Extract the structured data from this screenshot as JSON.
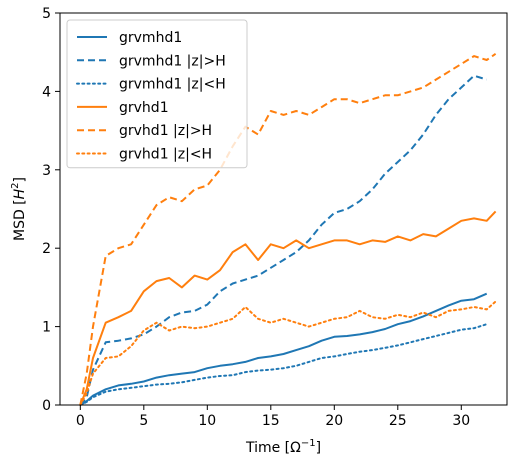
{
  "chart_data": {
    "type": "line",
    "title": "",
    "xlabel": "Time [Ω",
    "xlabel_sup": "−1",
    "xlabel_end": "]",
    "ylabel": "MSD [",
    "ylabel_italic": "H",
    "ylabel_sup": "2",
    "ylabel_end": "]",
    "xlim": [
      -1.6,
      33.6
    ],
    "ylim": [
      0,
      5
    ],
    "xticks": [
      0,
      5,
      10,
      15,
      20,
      25,
      30
    ],
    "xtick_labels": [
      "0",
      "5",
      "10",
      "15",
      "20",
      "25",
      "30"
    ],
    "yticks": [
      0,
      1,
      2,
      3,
      4,
      5
    ],
    "ytick_labels": [
      "0",
      "1",
      "2",
      "3",
      "4",
      "5"
    ],
    "grid": false,
    "legend_position": "top-left",
    "colors": {
      "blue": "#1f77b4",
      "orange": "#ff7f0e"
    },
    "series": [
      {
        "name": "grvmhd1",
        "color": "#1f77b4",
        "dash": "solid",
        "points": [
          [
            0,
            0
          ],
          [
            0.5,
            0.05
          ],
          [
            1,
            0.12
          ],
          [
            2,
            0.2
          ],
          [
            3,
            0.25
          ],
          [
            4,
            0.27
          ],
          [
            5,
            0.3
          ],
          [
            6,
            0.35
          ],
          [
            7,
            0.38
          ],
          [
            8,
            0.4
          ],
          [
            9,
            0.42
          ],
          [
            10,
            0.47
          ],
          [
            11,
            0.5
          ],
          [
            12,
            0.52
          ],
          [
            13,
            0.55
          ],
          [
            14,
            0.6
          ],
          [
            15,
            0.62
          ],
          [
            16,
            0.65
          ],
          [
            17,
            0.7
          ],
          [
            18,
            0.75
          ],
          [
            19,
            0.82
          ],
          [
            20,
            0.87
          ],
          [
            21,
            0.88
          ],
          [
            22,
            0.9
          ],
          [
            23,
            0.93
          ],
          [
            24,
            0.97
          ],
          [
            25,
            1.03
          ],
          [
            26,
            1.07
          ],
          [
            27,
            1.13
          ],
          [
            28,
            1.2
          ],
          [
            29,
            1.27
          ],
          [
            30,
            1.33
          ],
          [
            31,
            1.35
          ],
          [
            32,
            1.42
          ]
        ]
      },
      {
        "name": "grvmhd1 |z|>H",
        "color": "#1f77b4",
        "dash": "dashed",
        "points": [
          [
            0,
            0
          ],
          [
            0.5,
            0.1
          ],
          [
            1,
            0.45
          ],
          [
            2,
            0.8
          ],
          [
            3,
            0.82
          ],
          [
            4,
            0.85
          ],
          [
            5,
            0.9
          ],
          [
            6,
            1.0
          ],
          [
            7,
            1.12
          ],
          [
            8,
            1.18
          ],
          [
            9,
            1.2
          ],
          [
            10,
            1.28
          ],
          [
            11,
            1.45
          ],
          [
            12,
            1.55
          ],
          [
            13,
            1.6
          ],
          [
            14,
            1.65
          ],
          [
            15,
            1.75
          ],
          [
            16,
            1.85
          ],
          [
            17,
            1.95
          ],
          [
            18,
            2.1
          ],
          [
            19,
            2.3
          ],
          [
            20,
            2.45
          ],
          [
            21,
            2.5
          ],
          [
            22,
            2.6
          ],
          [
            23,
            2.75
          ],
          [
            24,
            2.95
          ],
          [
            25,
            3.1
          ],
          [
            26,
            3.25
          ],
          [
            27,
            3.45
          ],
          [
            28,
            3.7
          ],
          [
            29,
            3.9
          ],
          [
            30,
            4.05
          ],
          [
            31,
            4.2
          ],
          [
            32,
            4.15
          ]
        ]
      },
      {
        "name": "grvmhd1 |z|<H",
        "color": "#1f77b4",
        "dash": "dotted",
        "points": [
          [
            0,
            0
          ],
          [
            0.5,
            0.04
          ],
          [
            1,
            0.1
          ],
          [
            2,
            0.17
          ],
          [
            3,
            0.2
          ],
          [
            4,
            0.22
          ],
          [
            5,
            0.24
          ],
          [
            6,
            0.26
          ],
          [
            7,
            0.27
          ],
          [
            8,
            0.29
          ],
          [
            9,
            0.32
          ],
          [
            10,
            0.35
          ],
          [
            11,
            0.37
          ],
          [
            12,
            0.38
          ],
          [
            13,
            0.42
          ],
          [
            14,
            0.44
          ],
          [
            15,
            0.45
          ],
          [
            16,
            0.47
          ],
          [
            17,
            0.5
          ],
          [
            18,
            0.55
          ],
          [
            19,
            0.6
          ],
          [
            20,
            0.62
          ],
          [
            21,
            0.65
          ],
          [
            22,
            0.68
          ],
          [
            23,
            0.7
          ],
          [
            24,
            0.73
          ],
          [
            25,
            0.76
          ],
          [
            26,
            0.8
          ],
          [
            27,
            0.84
          ],
          [
            28,
            0.88
          ],
          [
            29,
            0.92
          ],
          [
            30,
            0.96
          ],
          [
            31,
            0.98
          ],
          [
            32,
            1.03
          ]
        ]
      },
      {
        "name": "grvhd1",
        "color": "#ff7f0e",
        "dash": "solid",
        "points": [
          [
            0,
            0
          ],
          [
            0.5,
            0.2
          ],
          [
            1,
            0.6
          ],
          [
            2,
            1.05
          ],
          [
            3,
            1.12
          ],
          [
            4,
            1.2
          ],
          [
            5,
            1.45
          ],
          [
            6,
            1.58
          ],
          [
            7,
            1.62
          ],
          [
            8,
            1.5
          ],
          [
            9,
            1.65
          ],
          [
            10,
            1.6
          ],
          [
            11,
            1.72
          ],
          [
            12,
            1.95
          ],
          [
            13,
            2.05
          ],
          [
            14,
            1.85
          ],
          [
            15,
            2.05
          ],
          [
            16,
            2.0
          ],
          [
            17,
            2.1
          ],
          [
            18,
            2.0
          ],
          [
            19,
            2.05
          ],
          [
            20,
            2.1
          ],
          [
            21,
            2.1
          ],
          [
            22,
            2.05
          ],
          [
            23,
            2.1
          ],
          [
            24,
            2.08
          ],
          [
            25,
            2.15
          ],
          [
            26,
            2.1
          ],
          [
            27,
            2.18
          ],
          [
            28,
            2.15
          ],
          [
            29,
            2.25
          ],
          [
            30,
            2.35
          ],
          [
            31,
            2.38
          ],
          [
            32,
            2.35
          ],
          [
            32.7,
            2.47
          ]
        ]
      },
      {
        "name": "grvhd1 |z|>H",
        "color": "#ff7f0e",
        "dash": "dashed",
        "points": [
          [
            0,
            0
          ],
          [
            0.5,
            0.4
          ],
          [
            1,
            1.0
          ],
          [
            2,
            1.9
          ],
          [
            3,
            2.0
          ],
          [
            4,
            2.05
          ],
          [
            5,
            2.3
          ],
          [
            6,
            2.55
          ],
          [
            7,
            2.65
          ],
          [
            8,
            2.6
          ],
          [
            9,
            2.75
          ],
          [
            10,
            2.8
          ],
          [
            11,
            3.0
          ],
          [
            12,
            3.3
          ],
          [
            13,
            3.55
          ],
          [
            14,
            3.45
          ],
          [
            15,
            3.75
          ],
          [
            16,
            3.7
          ],
          [
            17,
            3.75
          ],
          [
            18,
            3.7
          ],
          [
            19,
            3.8
          ],
          [
            20,
            3.9
          ],
          [
            21,
            3.9
          ],
          [
            22,
            3.85
          ],
          [
            23,
            3.9
          ],
          [
            24,
            3.95
          ],
          [
            25,
            3.95
          ],
          [
            26,
            4.0
          ],
          [
            27,
            4.05
          ],
          [
            28,
            4.15
          ],
          [
            29,
            4.25
          ],
          [
            30,
            4.35
          ],
          [
            31,
            4.45
          ],
          [
            32,
            4.4
          ],
          [
            32.7,
            4.48
          ]
        ]
      },
      {
        "name": "grvhd1 |z|<H",
        "color": "#ff7f0e",
        "dash": "dotted",
        "points": [
          [
            0,
            0
          ],
          [
            0.5,
            0.15
          ],
          [
            1,
            0.4
          ],
          [
            2,
            0.6
          ],
          [
            3,
            0.62
          ],
          [
            4,
            0.75
          ],
          [
            5,
            0.95
          ],
          [
            6,
            1.05
          ],
          [
            7,
            0.95
          ],
          [
            8,
            1.0
          ],
          [
            9,
            0.98
          ],
          [
            10,
            1.0
          ],
          [
            11,
            1.05
          ],
          [
            12,
            1.1
          ],
          [
            13,
            1.25
          ],
          [
            14,
            1.1
          ],
          [
            15,
            1.05
          ],
          [
            16,
            1.1
          ],
          [
            17,
            1.05
          ],
          [
            18,
            1.0
          ],
          [
            19,
            1.05
          ],
          [
            20,
            1.1
          ],
          [
            21,
            1.12
          ],
          [
            22,
            1.2
          ],
          [
            23,
            1.12
          ],
          [
            24,
            1.1
          ],
          [
            25,
            1.15
          ],
          [
            26,
            1.12
          ],
          [
            27,
            1.18
          ],
          [
            28,
            1.12
          ],
          [
            29,
            1.2
          ],
          [
            30,
            1.22
          ],
          [
            31,
            1.25
          ],
          [
            32,
            1.22
          ],
          [
            32.7,
            1.32
          ]
        ]
      }
    ]
  }
}
